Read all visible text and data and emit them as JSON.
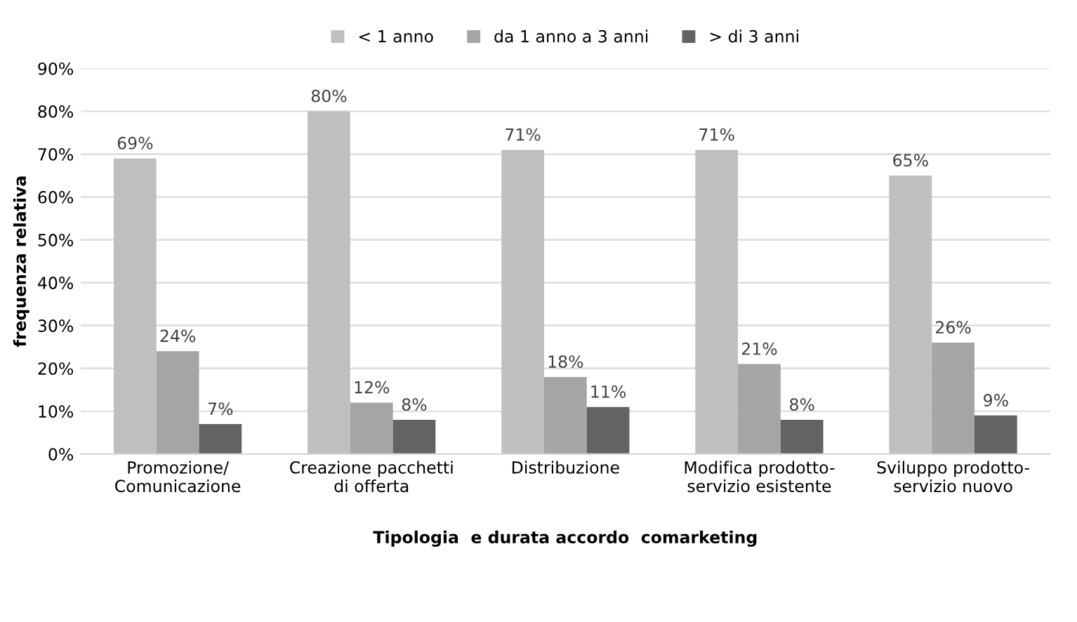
{
  "chart_data": {
    "type": "bar",
    "categories": [
      "Promozione/\nComunicazione",
      "Creazione pacchetti\ndi offerta",
      "Distribuzione",
      "Modifica prodotto-\nservizio esistente",
      "Sviluppo prodotto-\nservizio nuovo"
    ],
    "series": [
      {
        "name": "< 1 anno",
        "color": "#bfbfbf",
        "values": [
          69,
          80,
          71,
          71,
          65
        ],
        "value_labels": [
          "69%",
          "80%",
          "71%",
          "71%",
          "65%"
        ]
      },
      {
        "name": "da 1 anno a 3 anni",
        "color": "#a5a5a5",
        "values": [
          24,
          12,
          18,
          21,
          26
        ],
        "value_labels": [
          "24%",
          "12%",
          "18%",
          "21%",
          "26%"
        ]
      },
      {
        "name": "> di 3 anni",
        "color": "#636363",
        "values": [
          7,
          8,
          11,
          8,
          9
        ],
        "value_labels": [
          "7%",
          "8%",
          "11%",
          "8%",
          "9%"
        ]
      }
    ],
    "xlabel": "Tipologia  e durata accordo  comarketing",
    "ylabel": "frequenza relativa",
    "ylim": [
      0,
      90
    ],
    "yticks": [
      {
        "value": 0,
        "label": "0%"
      },
      {
        "value": 10,
        "label": "10%"
      },
      {
        "value": 20,
        "label": "20%"
      },
      {
        "value": 30,
        "label": "30%"
      },
      {
        "value": 40,
        "label": "40%"
      },
      {
        "value": 50,
        "label": "50%"
      },
      {
        "value": 60,
        "label": "60%"
      },
      {
        "value": 70,
        "label": "70%"
      },
      {
        "value": 80,
        "label": "80%"
      },
      {
        "value": 90,
        "label": "90%"
      }
    ],
    "grid": "y",
    "legend": "top"
  }
}
